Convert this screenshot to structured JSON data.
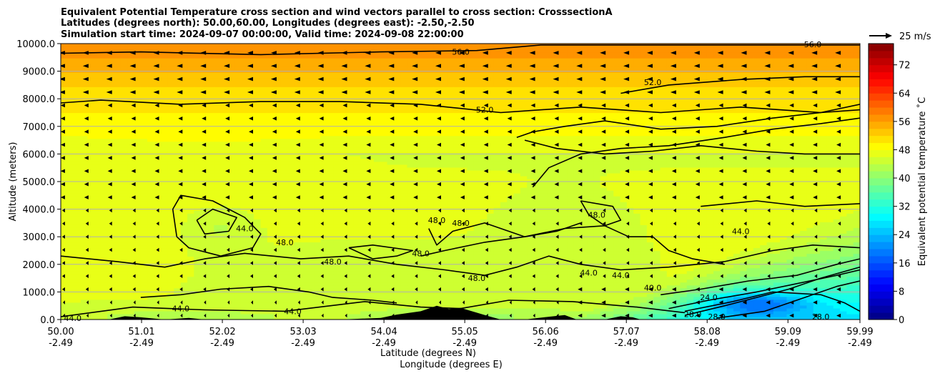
{
  "chart_data": {
    "type": "heatmap",
    "title_lines": [
      "Equivalent Potential Temperature cross section and wind vectors parallel to cross section: CrosssectionA",
      "Latitudes (degrees north): 50.00,60.00, Longitudes (degrees east): -2.50,-2.50",
      "Simulation start time: 2024-09-07 00:00:00, Valid time: 2024-09-08 22:00:00"
    ],
    "xlabel_lines": [
      "Latitude (degrees N)",
      "Longitude (degrees E)"
    ],
    "ylabel": "Altitude (meters)",
    "x_ticks_lat": [
      "50.00",
      "51.01",
      "52.02",
      "53.03",
      "54.04",
      "55.05",
      "56.06",
      "57.07",
      "58.08",
      "59.09",
      "59.99"
    ],
    "x_ticks_lon": [
      "-2.49",
      "-2.49",
      "-2.49",
      "-2.49",
      "-2.49",
      "-2.49",
      "-2.49",
      "-2.49",
      "-2.49",
      "-2.49",
      "-2.49"
    ],
    "xlim": [
      50.0,
      59.99
    ],
    "y_ticks": [
      "0.0",
      "1000.0",
      "2000.0",
      "3000.0",
      "4000.0",
      "5000.0",
      "6000.0",
      "7000.0",
      "8000.0",
      "9000.0",
      "10000.0"
    ],
    "ylim": [
      0,
      10000
    ],
    "grid": "horizontal",
    "colorbar": {
      "label": "Equivalent potential temperature ˚C",
      "ticks": [
        "0",
        "8",
        "16",
        "24",
        "32",
        "40",
        "48",
        "56",
        "64",
        "72"
      ],
      "range": [
        0,
        78
      ],
      "step": 2,
      "colormap": "jet"
    },
    "quiver_key": "25 m/s",
    "contour_labels": [
      {
        "text": "56.0",
        "lat": 55.0,
        "alt": 9700
      },
      {
        "text": "56.0",
        "lat": 59.4,
        "alt": 9980
      },
      {
        "text": "52.0",
        "lat": 55.3,
        "alt": 7600
      },
      {
        "text": "52.0",
        "lat": 57.4,
        "alt": 8600
      },
      {
        "text": "44.0",
        "lat": 52.3,
        "alt": 3300
      },
      {
        "text": "48.0",
        "lat": 52.8,
        "alt": 2800
      },
      {
        "text": "48.0",
        "lat": 53.4,
        "alt": 2100
      },
      {
        "text": "48.0",
        "lat": 54.7,
        "alt": 3600
      },
      {
        "text": "48.0",
        "lat": 55.0,
        "alt": 3500
      },
      {
        "text": "48.0",
        "lat": 54.5,
        "alt": 2400
      },
      {
        "text": "48.0",
        "lat": 55.2,
        "alt": 1500
      },
      {
        "text": "48.0",
        "lat": 56.7,
        "alt": 3800
      },
      {
        "text": "44.0",
        "lat": 56.6,
        "alt": 1700
      },
      {
        "text": "44.0",
        "lat": 57.0,
        "alt": 1600
      },
      {
        "text": "44.0",
        "lat": 58.5,
        "alt": 3200
      },
      {
        "text": "40.0",
        "lat": 57.4,
        "alt": 1150
      },
      {
        "text": "24.0",
        "lat": 58.1,
        "alt": 800
      },
      {
        "text": "28.0",
        "lat": 57.9,
        "alt": 200
      },
      {
        "text": "28.0",
        "lat": 58.2,
        "alt": 100
      },
      {
        "text": "28.0",
        "lat": 59.5,
        "alt": 100
      },
      {
        "text": "44.0",
        "lat": 50.15,
        "alt": 50
      },
      {
        "text": "44.0",
        "lat": 51.5,
        "alt": 400
      },
      {
        "text": "44.0",
        "lat": 52.9,
        "alt": 300
      }
    ]
  }
}
